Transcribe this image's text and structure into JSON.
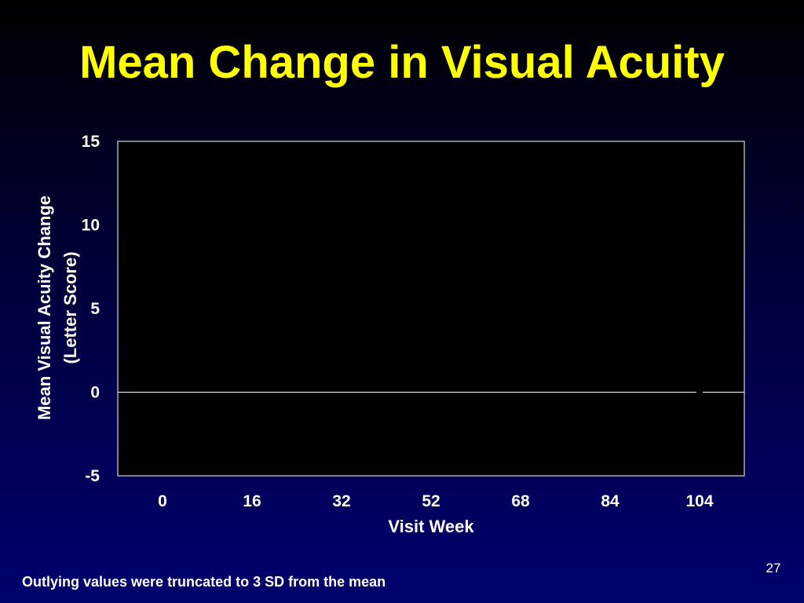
{
  "slide": {
    "title": "Mean Change in Visual Acuity",
    "footnote": "Outlying values were truncated to 3 SD from the mean",
    "page_number": "27"
  },
  "chart_data": {
    "type": "line",
    "title": "",
    "xlabel": "Visit Week",
    "ylabel_line1": "Mean Visual Acuity Change",
    "ylabel_line2": "(Letter Score)",
    "categories": [
      "0",
      "16",
      "32",
      "52",
      "68",
      "84",
      "104"
    ],
    "ylim": [
      -5,
      15
    ],
    "yticks": [
      "15",
      "10",
      "5",
      "0",
      "-5"
    ],
    "ytick_values": [
      15,
      10,
      5,
      0,
      -5
    ],
    "zero_line": true,
    "grid": false,
    "points": [
      {
        "x": "104",
        "y": 0
      }
    ],
    "colors": {
      "plot_background": "#000000",
      "plot_border": "#ffffff",
      "zero_line": "#ffffff",
      "marker": "#000000",
      "title": "#ffff00"
    }
  }
}
